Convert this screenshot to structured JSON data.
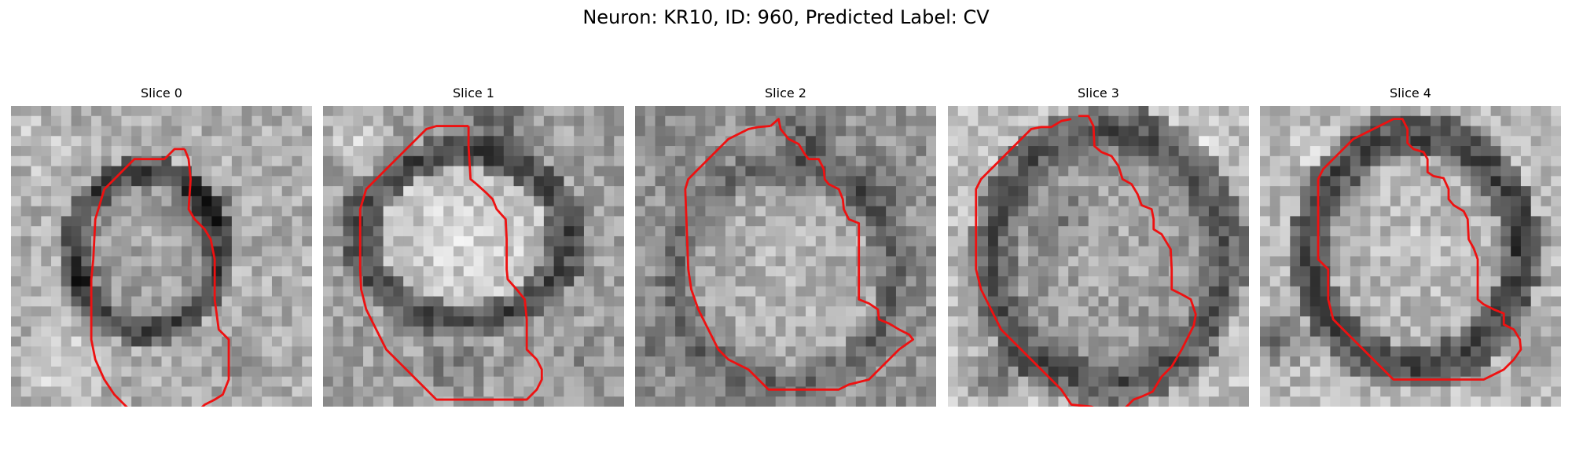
{
  "figure": {
    "title": "Neuron: KR10, ID: 960, Predicted Label: CV"
  },
  "slices": [
    {
      "label": "Slice 0"
    },
    {
      "label": "Slice 1"
    },
    {
      "label": "Slice 2"
    },
    {
      "label": "Slice 3"
    },
    {
      "label": "Slice 4"
    }
  ],
  "colors": {
    "contour": "#ee1111",
    "colormap": "grayscale"
  }
}
